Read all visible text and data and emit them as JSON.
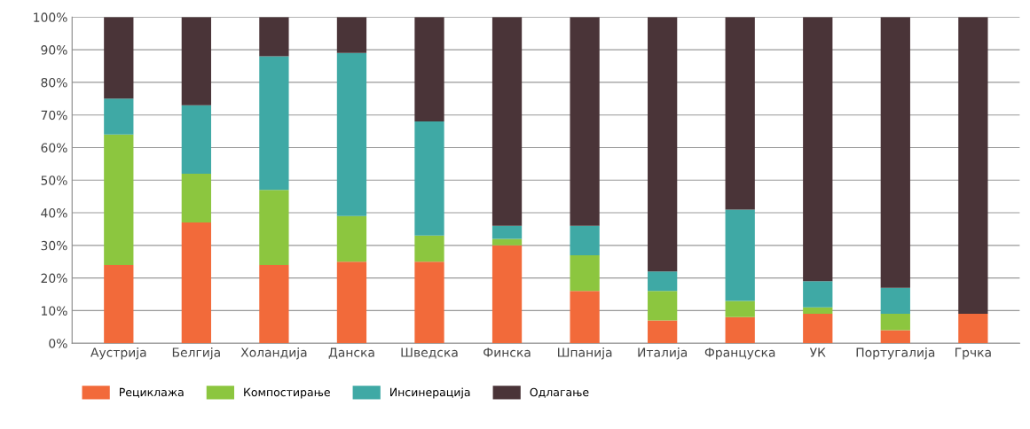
{
  "chart_data": {
    "type": "bar",
    "stacked": true,
    "categories": [
      "Аустрија",
      "Белгија",
      "Холандија",
      "Данска",
      "Шведска",
      "Финска",
      "Шпанија",
      "Италија",
      "Француска",
      "УК",
      "Португалија",
      "Грчка"
    ],
    "series": [
      {
        "name": "Рециклажа",
        "color": "#f26a3a",
        "values": [
          24,
          37,
          24,
          25,
          25,
          30,
          16,
          7,
          8,
          9,
          4,
          9
        ]
      },
      {
        "name": "Компостирање",
        "color": "#8cc63f",
        "values": [
          40,
          15,
          23,
          14,
          8,
          2,
          11,
          9,
          5,
          2,
          5,
          0
        ]
      },
      {
        "name": "Инсинерација",
        "color": "#3fa9a5",
        "values": [
          11,
          21,
          41,
          50,
          35,
          4,
          9,
          6,
          28,
          8,
          8,
          0
        ]
      },
      {
        "name": "Одлагање",
        "color": "#4a3438",
        "values": [
          25,
          27,
          12,
          11,
          32,
          64,
          64,
          78,
          59,
          81,
          83,
          91
        ]
      }
    ],
    "ylim": [
      0,
      100
    ],
    "yticks": [
      {
        "value": 0,
        "label": "0%"
      },
      {
        "value": 10,
        "label": "10%"
      },
      {
        "value": 20,
        "label": "20%"
      },
      {
        "value": 30,
        "label": "30%"
      },
      {
        "value": 40,
        "label": "40%"
      },
      {
        "value": 50,
        "label": "50%"
      },
      {
        "value": 60,
        "label": "60%"
      },
      {
        "value": 70,
        "label": "70%"
      },
      {
        "value": 80,
        "label": "80%"
      },
      {
        "value": 90,
        "label": "90%"
      },
      {
        "value": 100,
        "label": "100%"
      }
    ],
    "grid": "y",
    "legend": "bottom left"
  }
}
